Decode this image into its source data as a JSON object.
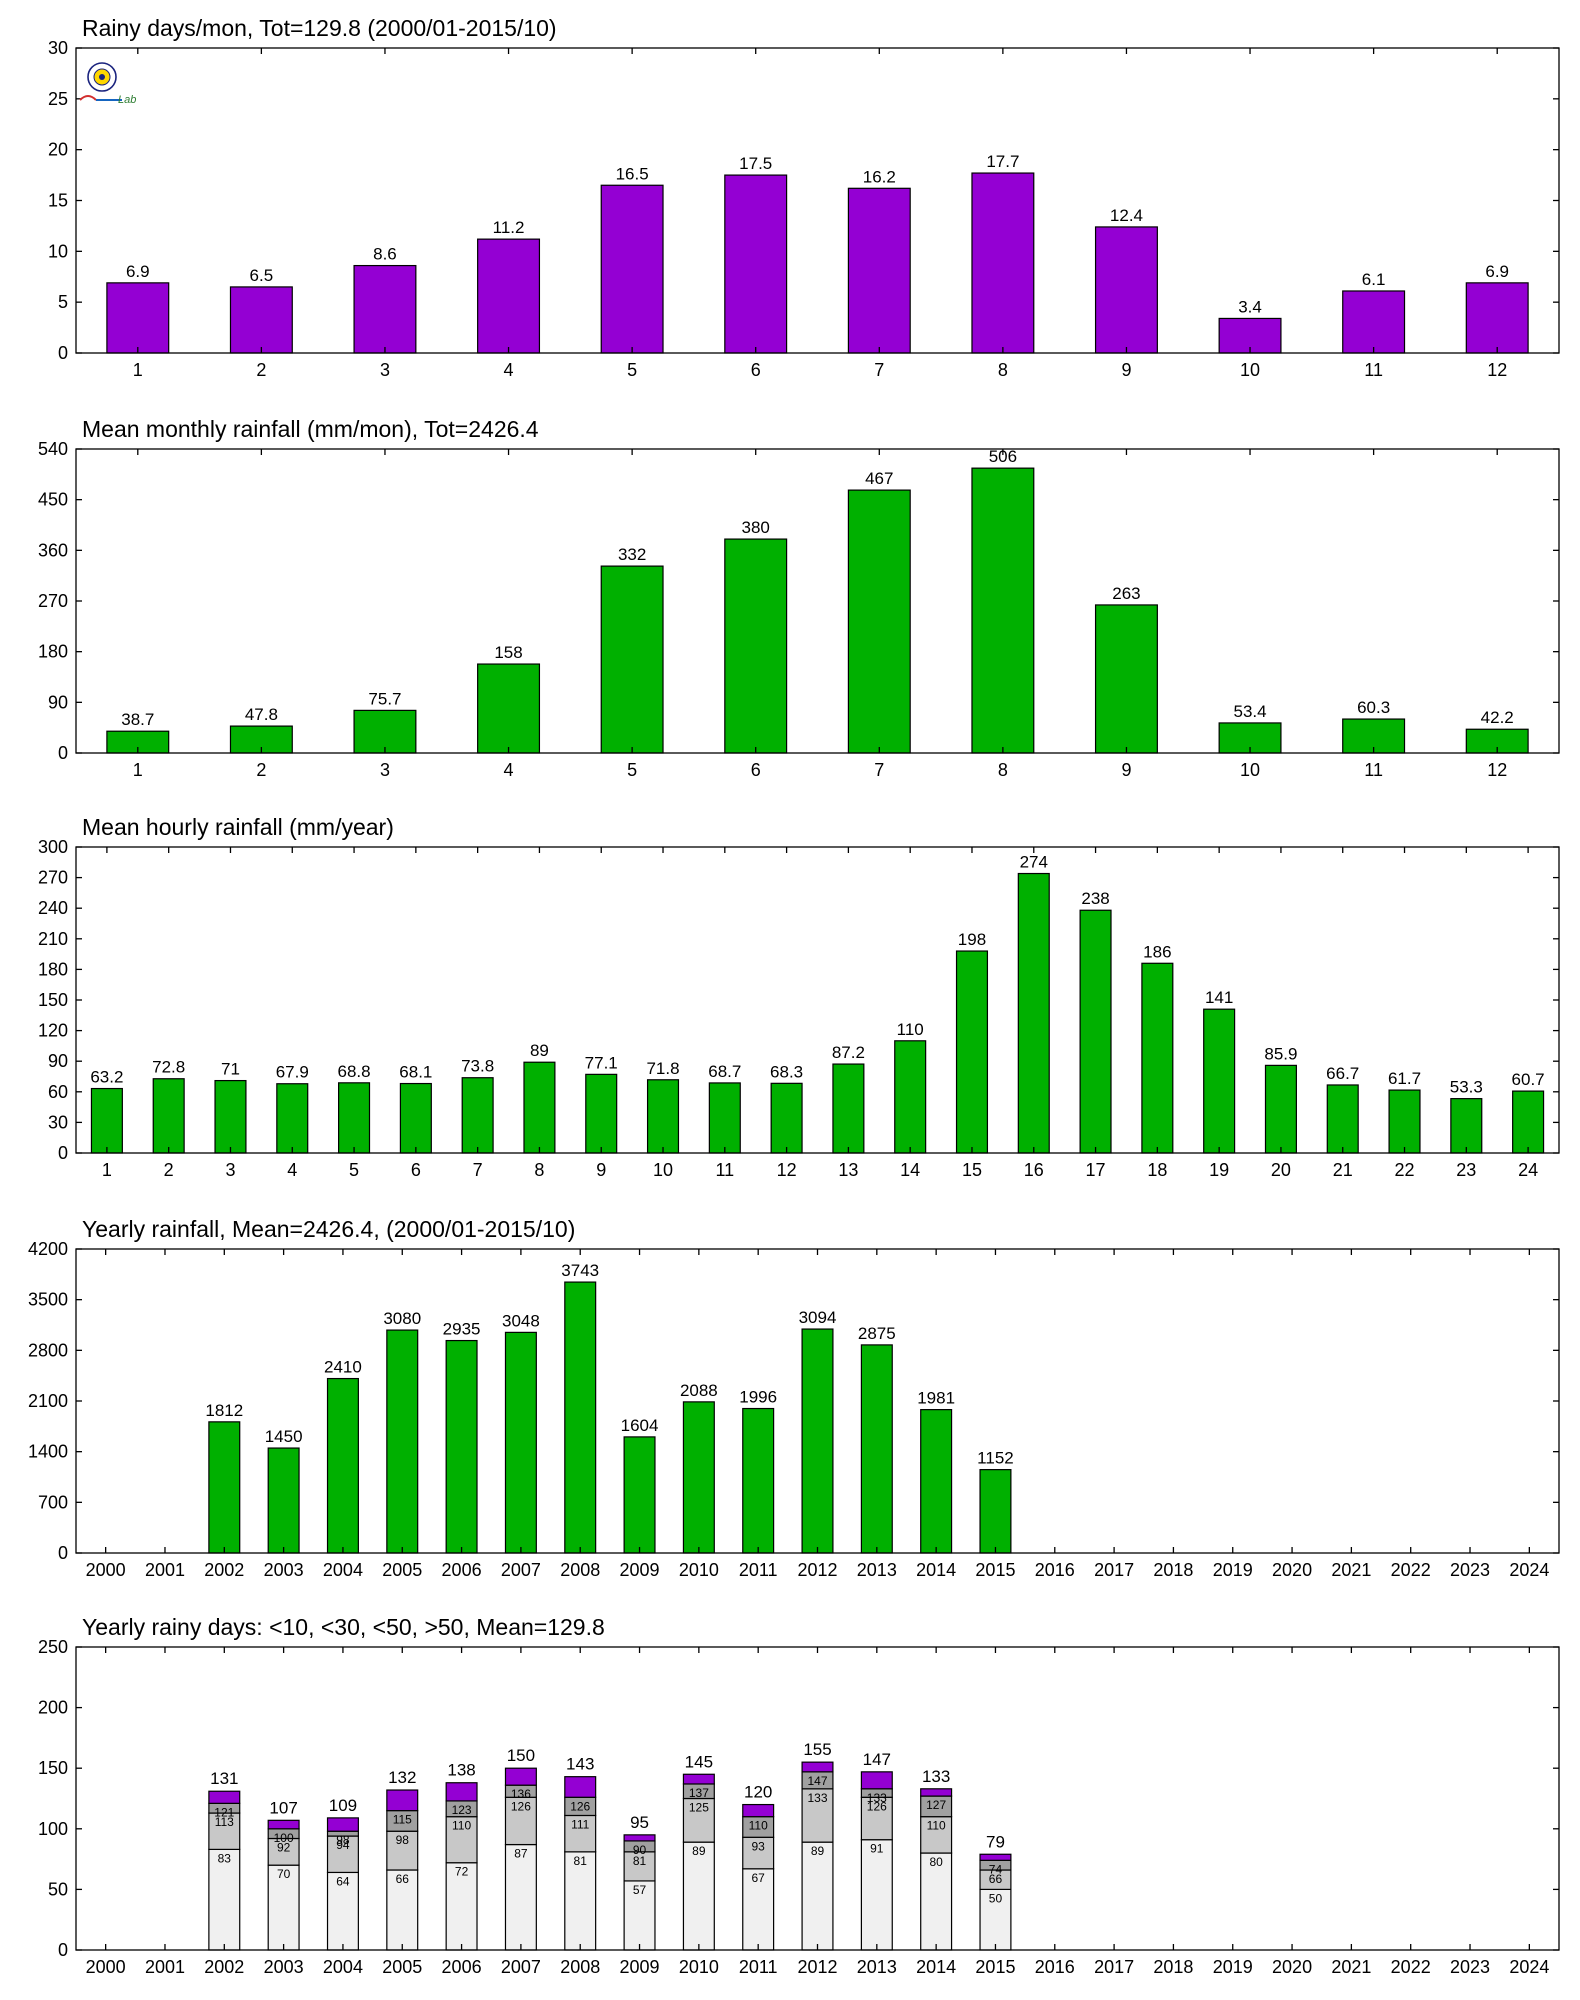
{
  "colors": {
    "purple": "#9400D3",
    "green": "#00B000",
    "stack_lt10": "#F0F0F0",
    "stack_lt30": "#C8C8C8",
    "stack_lt50": "#A0A0A0",
    "stack_gt50": "#9400D3"
  },
  "logo": {
    "icon": "lab-logo-icon",
    "text": "Lab"
  },
  "chart_data": [
    {
      "type": "bar",
      "title": "Rainy days/mon, Tot=129.8 (2000/01-2015/10)",
      "color": "#9400D3",
      "categories": [
        "1",
        "2",
        "3",
        "4",
        "5",
        "6",
        "7",
        "8",
        "9",
        "10",
        "11",
        "12"
      ],
      "values": [
        6.9,
        6.5,
        8.6,
        11.2,
        16.5,
        17.5,
        16.2,
        17.7,
        12.4,
        3.4,
        6.1,
        6.9
      ],
      "labels": [
        "6.9",
        "6.5",
        "8.6",
        "11.2",
        "16.5",
        "17.5",
        "16.2",
        "17.7",
        "12.4",
        "3.4",
        "6.1",
        "6.9"
      ],
      "ylim": [
        0,
        30
      ],
      "yticks": [
        0,
        5,
        10,
        15,
        20,
        25,
        30
      ],
      "grid": false
    },
    {
      "type": "bar",
      "title": "Mean monthly rainfall (mm/mon), Tot=2426.4",
      "color": "#00B000",
      "categories": [
        "1",
        "2",
        "3",
        "4",
        "5",
        "6",
        "7",
        "8",
        "9",
        "10",
        "11",
        "12"
      ],
      "values": [
        38.7,
        47.8,
        75.7,
        158,
        332,
        380,
        467,
        506,
        263,
        53.4,
        60.3,
        42.2
      ],
      "labels": [
        "38.7",
        "47.8",
        "75.7",
        "158",
        "332",
        "380",
        "467",
        "506",
        "263",
        "53.4",
        "60.3",
        "42.2"
      ],
      "ylim": [
        0,
        540
      ],
      "yticks": [
        0,
        90,
        180,
        270,
        360,
        450,
        540
      ],
      "grid": false
    },
    {
      "type": "bar",
      "title": "Mean hourly rainfall (mm/year)",
      "color": "#00B000",
      "categories": [
        "1",
        "2",
        "3",
        "4",
        "5",
        "6",
        "7",
        "8",
        "9",
        "10",
        "11",
        "12",
        "13",
        "14",
        "15",
        "16",
        "17",
        "18",
        "19",
        "20",
        "21",
        "22",
        "23",
        "24"
      ],
      "values": [
        63.2,
        72.8,
        71,
        67.9,
        68.8,
        68.1,
        73.8,
        89,
        77.1,
        71.8,
        68.7,
        68.3,
        87.2,
        110,
        198,
        274,
        238,
        186,
        141,
        85.9,
        66.7,
        61.7,
        53.3,
        60.7
      ],
      "labels": [
        "63.2",
        "72.8",
        "71",
        "67.9",
        "68.8",
        "68.1",
        "73.8",
        "89",
        "77.1",
        "71.8",
        "68.7",
        "68.3",
        "87.2",
        "110",
        "198",
        "274",
        "238",
        "186",
        "141",
        "85.9",
        "66.7",
        "61.7",
        "53.3",
        "60.7"
      ],
      "ylim": [
        0,
        300
      ],
      "yticks": [
        0,
        30,
        60,
        90,
        120,
        150,
        180,
        210,
        240,
        270,
        300
      ],
      "grid": false
    },
    {
      "type": "bar",
      "title": "Yearly rainfall, Mean=2426.4, (2000/01-2015/10)",
      "color": "#00B000",
      "categories": [
        "2000",
        "2001",
        "2002",
        "2003",
        "2004",
        "2005",
        "2006",
        "2007",
        "2008",
        "2009",
        "2010",
        "2011",
        "2012",
        "2013",
        "2014",
        "2015",
        "2016",
        "2017",
        "2018",
        "2019",
        "2020",
        "2021",
        "2022",
        "2023",
        "2024"
      ],
      "values": [
        null,
        null,
        1812,
        1450,
        2410,
        3080,
        2935,
        3048,
        3743,
        1604,
        2088,
        1996,
        3094,
        2875,
        1981,
        1152,
        null,
        null,
        null,
        null,
        null,
        null,
        null,
        null,
        null
      ],
      "labels": [
        "",
        "",
        "1812",
        "1450",
        "2410",
        "3080",
        "2935",
        "3048",
        "3743",
        "1604",
        "2088",
        "1996",
        "3094",
        "2875",
        "1981",
        "1152",
        "",
        "",
        "",
        "",
        "",
        "",
        "",
        "",
        ""
      ],
      "ylim": [
        0,
        4200
      ],
      "yticks": [
        0,
        700,
        1400,
        2100,
        2800,
        3500,
        4200
      ],
      "grid": false
    },
    {
      "type": "bar",
      "stacked": true,
      "title": "Yearly rainy days: <10, <30, <50, >50, Mean=129.8",
      "categories": [
        "2000",
        "2001",
        "2002",
        "2003",
        "2004",
        "2005",
        "2006",
        "2007",
        "2008",
        "2009",
        "2010",
        "2011",
        "2012",
        "2013",
        "2014",
        "2015",
        "2016",
        "2017",
        "2018",
        "2019",
        "2020",
        "2021",
        "2022",
        "2023",
        "2024"
      ],
      "cumulative": [
        [
          null,
          null,
          null,
          null
        ],
        [
          null,
          null,
          null,
          null
        ],
        [
          83,
          113,
          121,
          131
        ],
        [
          70,
          92,
          100,
          107
        ],
        [
          64,
          94,
          98,
          109
        ],
        [
          66,
          98,
          115,
          132
        ],
        [
          72,
          110,
          123,
          138
        ],
        [
          87,
          126,
          136,
          150
        ],
        [
          81,
          111,
          126,
          143
        ],
        [
          57,
          81,
          90,
          95
        ],
        [
          89,
          125,
          137,
          145
        ],
        [
          67,
          93,
          110,
          120
        ],
        [
          89,
          133,
          147,
          155
        ],
        [
          91,
          126,
          133,
          147
        ],
        [
          80,
          110,
          127,
          133
        ],
        [
          50,
          66,
          74,
          79
        ],
        [
          null,
          null,
          null,
          null
        ],
        [
          null,
          null,
          null,
          null
        ],
        [
          null,
          null,
          null,
          null
        ],
        [
          null,
          null,
          null,
          null
        ],
        [
          null,
          null,
          null,
          null
        ],
        [
          null,
          null,
          null,
          null
        ],
        [
          null,
          null,
          null,
          null
        ],
        [
          null,
          null,
          null,
          null
        ],
        [
          null,
          null,
          null,
          null
        ]
      ],
      "segment_labels": [
        [
          "",
          "",
          ""
        ],
        [
          "",
          "",
          ""
        ],
        [
          "83",
          "113",
          "121"
        ],
        [
          "70",
          "92",
          "100"
        ],
        [
          "64",
          "94",
          "98"
        ],
        [
          "66",
          "98",
          "115"
        ],
        [
          "72",
          "110",
          "123"
        ],
        [
          "87",
          "126",
          "136"
        ],
        [
          "81",
          "111",
          "126"
        ],
        [
          "57",
          "81",
          "90"
        ],
        [
          "89",
          "125",
          "137"
        ],
        [
          "67",
          "93",
          "110"
        ],
        [
          "89",
          "133",
          "147"
        ],
        [
          "91",
          "126",
          "133"
        ],
        [
          "80",
          "110",
          "127"
        ],
        [
          "50",
          "66",
          "74"
        ],
        [
          "",
          "",
          ""
        ],
        [
          "",
          "",
          ""
        ],
        [
          "",
          "",
          ""
        ],
        [
          "",
          "",
          ""
        ],
        [
          "",
          "",
          ""
        ],
        [
          "",
          "",
          ""
        ],
        [
          "",
          "",
          ""
        ],
        [
          "",
          "",
          ""
        ],
        [
          "",
          "",
          ""
        ]
      ],
      "total_labels": [
        "",
        "",
        "131",
        "107",
        "109",
        "132",
        "138",
        "150",
        "143",
        "95",
        "145",
        "120",
        "155",
        "147",
        "133",
        "79",
        "",
        "",
        "",
        "",
        "",
        "",
        "",
        "",
        ""
      ],
      "series_colors": [
        "#F0F0F0",
        "#C8C8C8",
        "#A0A0A0",
        "#9400D3"
      ],
      "ylim": [
        0,
        250
      ],
      "yticks": [
        0,
        50,
        100,
        150,
        200,
        250
      ],
      "grid": false
    }
  ]
}
